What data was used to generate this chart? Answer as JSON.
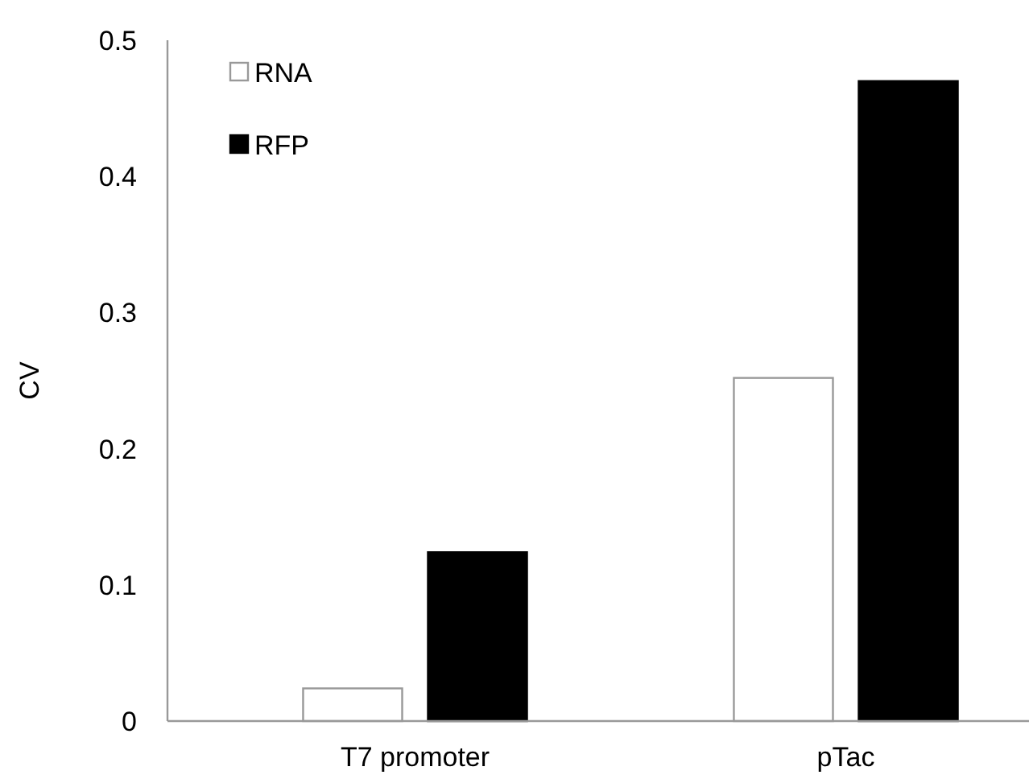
{
  "chart_data": {
    "type": "bar",
    "ylabel": "CV",
    "categories": [
      "T7 promoter",
      "pTac"
    ],
    "series": [
      {
        "name": "RNA",
        "color": "#ffffff",
        "values": [
          0.024,
          0.252
        ]
      },
      {
        "name": "RFP",
        "color": "#000000",
        "values": [
          0.124,
          0.47
        ]
      }
    ],
    "ylim": [
      0,
      0.5
    ],
    "yticks": [
      0,
      0.1,
      0.2,
      0.3,
      0.4,
      0.5
    ],
    "grid": false,
    "legend": "top left"
  }
}
